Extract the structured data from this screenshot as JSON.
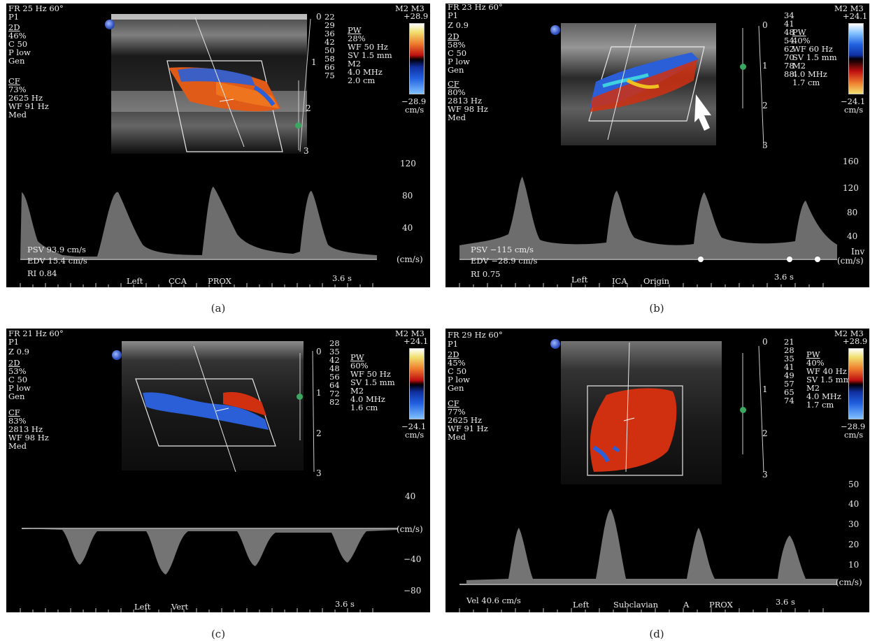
{
  "panels": [
    {
      "id": "a",
      "caption": "(a)",
      "header": "FR 25 Hz 60°",
      "params": [
        "P1",
        "2D",
        "46%",
        "C 50",
        "P low",
        "Gen",
        "CF",
        "73%",
        "2625 Hz",
        "WF 91 Hz",
        "Med"
      ],
      "pw": [
        "PW",
        "28%",
        "WF 50 Hz",
        "SV 1.5 mm",
        "M2",
        "4.0 MHz",
        "2.0 cm"
      ],
      "depth_numbers": [
        "22",
        "29",
        "36",
        "42",
        "50",
        "58",
        "66",
        "75"
      ],
      "mode": "M2 M3",
      "scale_top": "+28.9",
      "scale_bottom": "−28.9",
      "scale_unit": "cm/s",
      "depth_scale": [
        "0",
        "1",
        "2",
        "3"
      ],
      "velocity_ticks": [
        "120",
        "80",
        "40",
        "(cm/s)"
      ],
      "measurements": [
        "PSV 93.9 cm/s",
        "EDV 15.4 cm/s",
        "RI 0.84"
      ],
      "labels": [
        "Left",
        "CCA",
        "PROX"
      ],
      "time": "3.6 s"
    },
    {
      "id": "b",
      "caption": "(b)",
      "header": "FR 23 Hz 60°",
      "params": [
        "P1",
        "Z 0.9",
        "2D",
        "58%",
        "C 50",
        "P low",
        "Gen",
        "CF",
        "80%",
        "2813 Hz",
        "WF 98 Hz",
        "Med"
      ],
      "pw": [
        "PW",
        "40%",
        "WF 60 Hz",
        "SV 1.5 mm",
        "M2",
        "4.0 MHz",
        "1.7 cm"
      ],
      "depth_numbers": [
        "34",
        "41",
        "48",
        "54",
        "62",
        "70",
        "78",
        "88"
      ],
      "mode": "M2 M3",
      "scale_top": "+24.1",
      "scale_bottom": "−24.1",
      "scale_unit": "cm/s",
      "depth_scale": [
        "0",
        "1",
        "2",
        "3"
      ],
      "velocity_ticks": [
        "160",
        "120",
        "80",
        "40",
        "Inv",
        "(cm/s)"
      ],
      "measurements": [
        "PSV −115 cm/s",
        "EDV −28.9 cm/s",
        "RI 0.75"
      ],
      "labels": [
        "Left",
        "ICA",
        "Origin"
      ],
      "time": "3.6 s"
    },
    {
      "id": "c",
      "caption": "(c)",
      "header": "FR 21 Hz 60°",
      "params": [
        "P1",
        "Z 0.9",
        "2D",
        "53%",
        "C 50",
        "P low",
        "Gen",
        "CF",
        "83%",
        "2813 Hz",
        "WF 98 Hz",
        "Med"
      ],
      "pw": [
        "PW",
        "60%",
        "WF 50 Hz",
        "SV 1.5 mm",
        "M2",
        "4.0 MHz",
        "1.6 cm"
      ],
      "depth_numbers": [
        "28",
        "35",
        "42",
        "48",
        "56",
        "64",
        "72",
        "82"
      ],
      "mode": "M2 M3",
      "scale_top": "+24.1",
      "scale_bottom": "−24.1",
      "scale_unit": "cm/s",
      "depth_scale": [
        "0",
        "1",
        "2",
        "3"
      ],
      "velocity_ticks": [
        "40",
        "(cm/s)",
        "−40",
        "−80"
      ],
      "measurements": [],
      "labels": [
        "Left",
        "Vert"
      ],
      "time": "3.6 s"
    },
    {
      "id": "d",
      "caption": "(d)",
      "header": "FR 29 Hz 60°",
      "params": [
        "P1",
        "2D",
        "45%",
        "C 50",
        "P low",
        "Gen",
        "CF",
        "77%",
        "2625 Hz",
        "WF 91 Hz",
        "Med"
      ],
      "pw": [
        "PW",
        "40%",
        "WF 40 Hz",
        "SV 1.5 mm",
        "M2",
        "4.0 MHz",
        "1.7 cm"
      ],
      "depth_numbers": [
        "21",
        "28",
        "35",
        "41",
        "49",
        "57",
        "65",
        "74"
      ],
      "mode": "M2 M3",
      "scale_top": "+28.9",
      "scale_bottom": "−28.9",
      "scale_unit": "cm/s",
      "depth_scale": [
        "0",
        "1",
        "2",
        "3"
      ],
      "velocity_ticks": [
        "50",
        "40",
        "30",
        "20",
        "10",
        "(cm/s)"
      ],
      "measurements": [
        "Vel 40.6 cm/s"
      ],
      "labels": [
        "Left",
        "Subclavian",
        "A",
        "PROX"
      ],
      "time": "3.6 s"
    }
  ],
  "colors": {
    "background": "#000000",
    "flow_red": "#d03010",
    "flow_blue": "#2a5fd8",
    "marker_green": "#3aa860"
  }
}
